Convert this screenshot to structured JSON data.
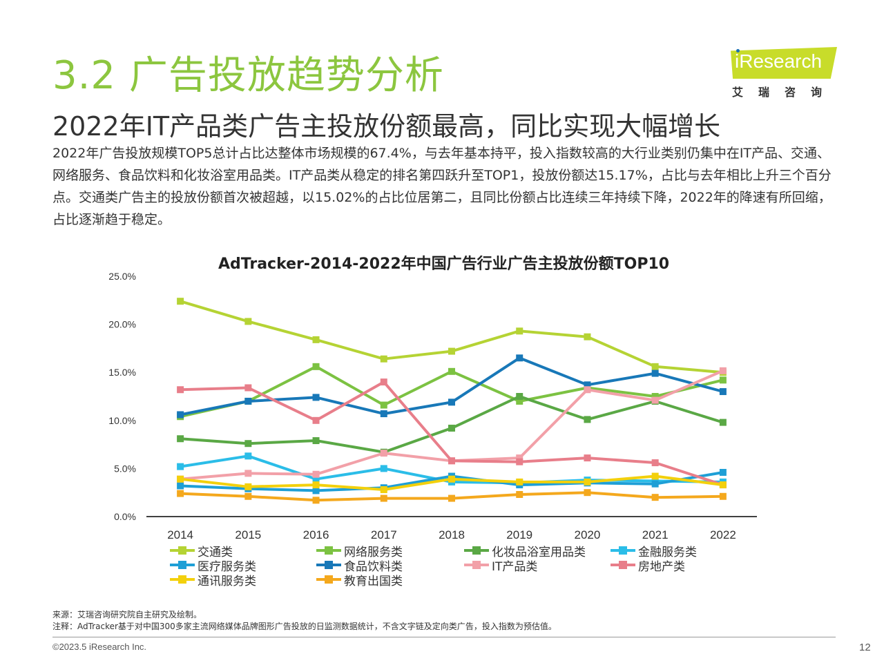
{
  "header": {
    "title": "3.2 广告投放趋势分析",
    "subtitle": "2022年IT产品类广告主投放份额最高，同比实现大幅增长",
    "logo_text": "iResearch",
    "logo_cn": "艾瑞咨询",
    "logo_color": "#c8dc2a"
  },
  "summary": "2022年广告投放规模TOP5总计占比达整体市场规模的67.4%，与去年基本持平，投入指数较高的大行业类别仍集中在IT产品、交通、网络服务、食品饮料和化妆浴室用品类。IT产品类从稳定的排名第四跃升至TOP1，投放份额达15.17%，占比与去年相比上升三个百分点。交通类广告主的投放份额首次被超越，以15.02%的占比位居第二，且同比份额占比连续三年持续下降，2022年的降速有所回缩，占比逐渐趋于稳定。",
  "chart_data": {
    "type": "line",
    "title": "AdTracker-2014-2022年中国广告行业广告主投放份额TOP10",
    "x": [
      "2014",
      "2015",
      "2016",
      "2017",
      "2018",
      "2019",
      "2020",
      "2021",
      "2022"
    ],
    "ylim": [
      0,
      25
    ],
    "yticks": [
      "0.0%",
      "5.0%",
      "10.0%",
      "15.0%",
      "20.0%",
      "25.0%"
    ],
    "grid": false,
    "legend_position": "bottom",
    "series": [
      {
        "name": "交通类",
        "color": "#b5d334",
        "values": [
          22.4,
          20.3,
          18.4,
          16.4,
          17.2,
          19.3,
          18.7,
          15.6,
          15.0
        ]
      },
      {
        "name": "网络服务类",
        "color": "#7cc242",
        "values": [
          10.4,
          12.0,
          15.6,
          11.6,
          15.1,
          12.0,
          13.4,
          12.5,
          14.2
        ]
      },
      {
        "name": "化妆品浴室用品类",
        "color": "#5aa845",
        "values": [
          8.1,
          7.6,
          7.9,
          6.7,
          9.2,
          12.5,
          10.1,
          12.0,
          9.8
        ]
      },
      {
        "name": "金融服务类",
        "color": "#2bbde8",
        "values": [
          5.2,
          6.3,
          3.9,
          5.0,
          3.6,
          3.5,
          3.8,
          3.7,
          3.6
        ]
      },
      {
        "name": "医疗服务类",
        "color": "#1e9fd6",
        "values": [
          3.2,
          2.9,
          2.7,
          3.0,
          4.2,
          3.3,
          3.5,
          3.4,
          4.6
        ]
      },
      {
        "name": "食品饮料类",
        "color": "#1878b8",
        "values": [
          10.6,
          12.0,
          12.4,
          10.7,
          11.9,
          16.5,
          13.7,
          14.9,
          13.0
        ]
      },
      {
        "name": "IT产品类",
        "color": "#f2a0a8",
        "values": [
          3.9,
          4.5,
          4.4,
          6.6,
          5.8,
          6.1,
          13.2,
          12.1,
          15.17
        ]
      },
      {
        "name": "房地产类",
        "color": "#e87e8a",
        "values": [
          13.2,
          13.4,
          10.0,
          14.0,
          5.8,
          5.7,
          6.1,
          5.6,
          3.3
        ]
      },
      {
        "name": "通讯服务类",
        "color": "#f3d00c",
        "values": [
          3.9,
          3.1,
          3.3,
          2.8,
          3.9,
          3.6,
          3.6,
          4.2,
          3.3
        ]
      },
      {
        "name": "教育出国类",
        "color": "#f4a81d",
        "values": [
          2.4,
          2.1,
          1.7,
          1.9,
          1.9,
          2.3,
          2.5,
          2.0,
          2.1
        ]
      }
    ]
  },
  "footer": {
    "source": "来源：艾瑞咨询研究院自主研究及绘制。",
    "note": "注释：AdTracker基于对中国300多家主流网络媒体品牌图形广告投放的日监测数据统计，不含文字链及定向类广告，投入指数为预估值。",
    "copyright": "©2023.5 iResearch Inc.",
    "page": "12"
  }
}
